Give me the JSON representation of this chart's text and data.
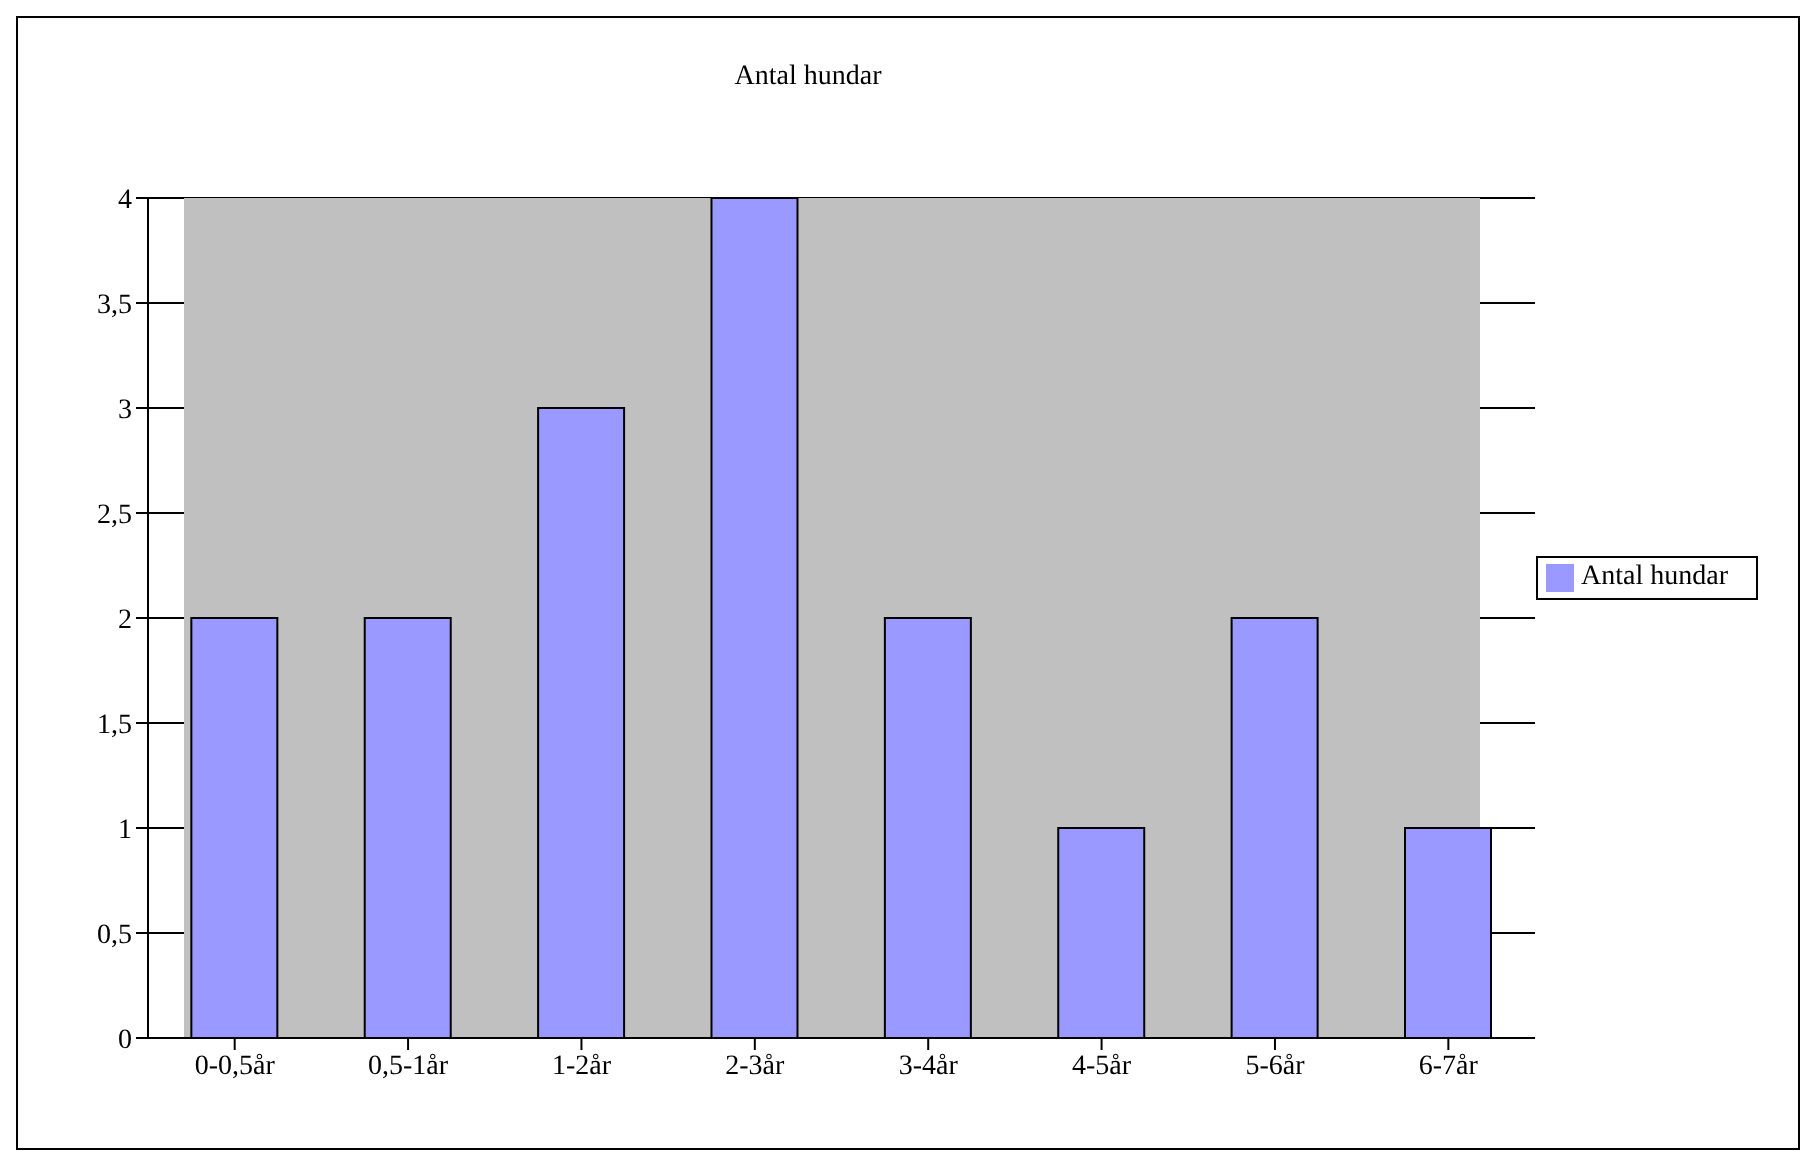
{
  "chart_data": {
    "type": "bar",
    "title": "Antal hundar",
    "categories": [
      "0-0,5år",
      "0,5-1år",
      "1-2år",
      "2-3år",
      "3-4år",
      "4-5år",
      "5-6år",
      "6-7år"
    ],
    "series": [
      {
        "name": "Antal hundar",
        "color": "#9999ff",
        "values": [
          2,
          2,
          3,
          4,
          2,
          1,
          2,
          1
        ]
      }
    ],
    "ylim": [
      0,
      4
    ],
    "yticks": [
      0,
      {
        "value": 0.5,
        "label": "0,5"
      },
      1,
      {
        "value": 1.5,
        "label": "1,5"
      },
      2,
      {
        "value": 2.5,
        "label": "2,5"
      },
      3,
      {
        "value": 3.5,
        "label": "3,5"
      },
      4
    ],
    "grid": "y",
    "legend": "right"
  }
}
